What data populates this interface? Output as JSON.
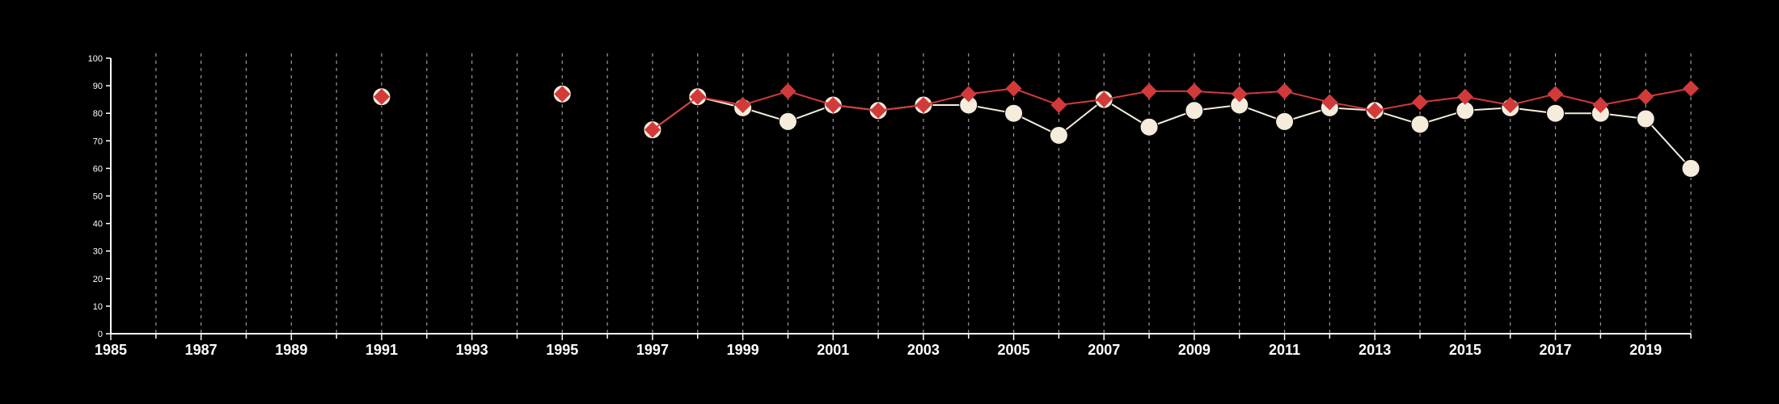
{
  "chart_data": {
    "type": "line",
    "title": "",
    "xlabel": "",
    "ylabel": "",
    "xlim": [
      1985,
      2020
    ],
    "ylim": [
      0,
      100
    ],
    "x_ticks": [
      1985,
      1987,
      1989,
      1991,
      1993,
      1995,
      1997,
      1999,
      2001,
      2003,
      2005,
      2007,
      2009,
      2011,
      2013,
      2015,
      2017,
      2019
    ],
    "y_ticks": [
      0,
      10,
      20,
      30,
      40,
      50,
      60,
      70,
      80,
      90,
      100
    ],
    "grid": "vertical dashed lines at every year from 1986 to 2020",
    "legend": "none",
    "series": [
      {
        "color": "#f5ecdc",
        "marker": "circle",
        "points": [
          {
            "x": 1991,
            "y": 86
          },
          {
            "x": 1995,
            "y": 87
          },
          {
            "x": 1997,
            "y": 74
          },
          {
            "x": 1998,
            "y": 86
          },
          {
            "x": 1999,
            "y": 82
          },
          {
            "x": 2000,
            "y": 77
          },
          {
            "x": 2001,
            "y": 83
          },
          {
            "x": 2002,
            "y": 81
          },
          {
            "x": 2003,
            "y": 83
          },
          {
            "x": 2004,
            "y": 83
          },
          {
            "x": 2005,
            "y": 80
          },
          {
            "x": 2006,
            "y": 72
          },
          {
            "x": 2007,
            "y": 85
          },
          {
            "x": 2008,
            "y": 75
          },
          {
            "x": 2009,
            "y": 81
          },
          {
            "x": 2010,
            "y": 83
          },
          {
            "x": 2011,
            "y": 77
          },
          {
            "x": 2012,
            "y": 82
          },
          {
            "x": 2013,
            "y": 81
          },
          {
            "x": 2014,
            "y": 76
          },
          {
            "x": 2015,
            "y": 81
          },
          {
            "x": 2016,
            "y": 82
          },
          {
            "x": 2017,
            "y": 80
          },
          {
            "x": 2018,
            "y": 80
          },
          {
            "x": 2019,
            "y": 78
          },
          {
            "x": 2020,
            "y": 60
          }
        ]
      },
      {
        "color": "#d23a3a",
        "marker": "diamond",
        "points": [
          {
            "x": 1991,
            "y": 86
          },
          {
            "x": 1995,
            "y": 87
          },
          {
            "x": 1997,
            "y": 74
          },
          {
            "x": 1998,
            "y": 86
          },
          {
            "x": 1999,
            "y": 83
          },
          {
            "x": 2000,
            "y": 88
          },
          {
            "x": 2001,
            "y": 83
          },
          {
            "x": 2002,
            "y": 81
          },
          {
            "x": 2003,
            "y": 83
          },
          {
            "x": 2004,
            "y": 87
          },
          {
            "x": 2005,
            "y": 89
          },
          {
            "x": 2006,
            "y": 83
          },
          {
            "x": 2007,
            "y": 85
          },
          {
            "x": 2008,
            "y": 88
          },
          {
            "x": 2009,
            "y": 88
          },
          {
            "x": 2010,
            "y": 87
          },
          {
            "x": 2011,
            "y": 88
          },
          {
            "x": 2012,
            "y": 84
          },
          {
            "x": 2013,
            "y": 81
          },
          {
            "x": 2014,
            "y": 84
          },
          {
            "x": 2015,
            "y": 86
          },
          {
            "x": 2016,
            "y": 83
          },
          {
            "x": 2017,
            "y": 87
          },
          {
            "x": 2018,
            "y": 83
          },
          {
            "x": 2019,
            "y": 86
          },
          {
            "x": 2020,
            "y": 89
          }
        ]
      }
    ],
    "colors": {
      "background": "#000000",
      "axis": "#ffffff",
      "grid": "#9a9a9a"
    }
  }
}
